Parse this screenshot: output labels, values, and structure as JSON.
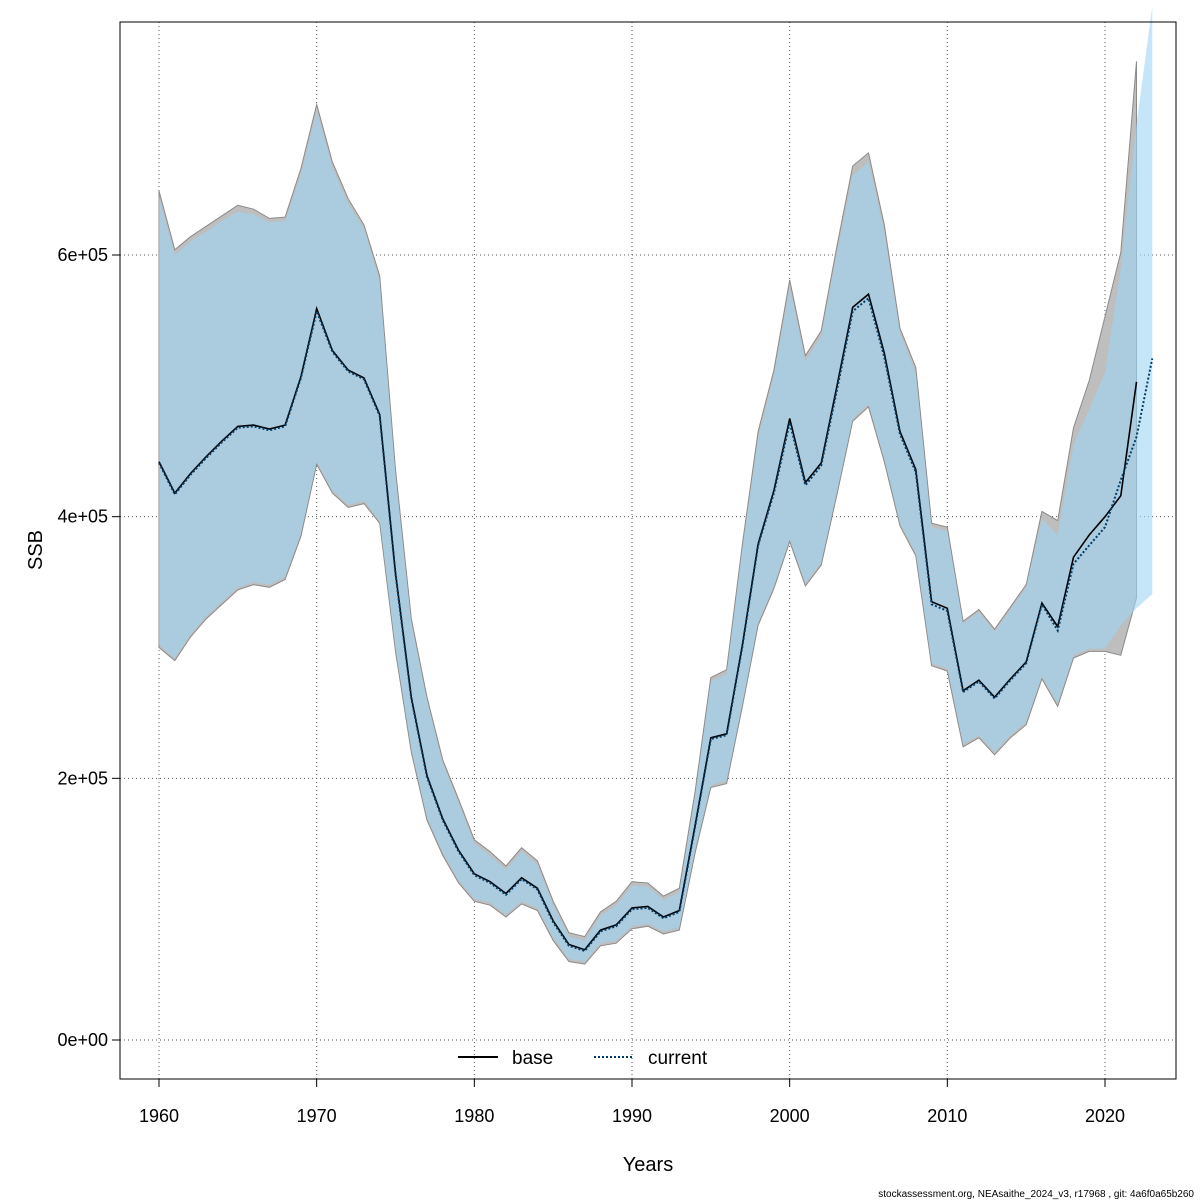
{
  "chart_data": {
    "type": "line",
    "title": "",
    "xlabel": "Years",
    "ylabel": "SSB",
    "xlim": [
      1957.5,
      2024.5
    ],
    "ylim": [
      -29000,
      780000
    ],
    "x_ticks": [
      1960,
      1970,
      1980,
      1990,
      2000,
      2010,
      2020
    ],
    "x_tick_labels": [
      "1960",
      "1970",
      "1980",
      "1990",
      "2000",
      "2010",
      "2020"
    ],
    "y_ticks": [
      0,
      200000,
      400000,
      600000
    ],
    "y_tick_labels": [
      "0e+00",
      "2e+05",
      "4e+05",
      "6e+05"
    ],
    "grid": true,
    "legend_position": "bottom",
    "series": [
      {
        "name": "base",
        "line_style": "solid",
        "color": "#000000",
        "band_color": "#bebebe",
        "x": [
          1960,
          1961,
          1962,
          1963,
          1964,
          1965,
          1966,
          1967,
          1968,
          1969,
          1970,
          1971,
          1972,
          1973,
          1974,
          1975,
          1976,
          1977,
          1978,
          1979,
          1980,
          1981,
          1982,
          1983,
          1984,
          1985,
          1986,
          1987,
          1988,
          1989,
          1990,
          1991,
          1992,
          1993,
          1994,
          1995,
          1996,
          1997,
          1998,
          1999,
          2000,
          2001,
          2002,
          2003,
          2004,
          2005,
          2006,
          2007,
          2008,
          2009,
          2010,
          2011,
          2012,
          2013,
          2014,
          2015,
          2016,
          2017,
          2018,
          2019,
          2020,
          2021,
          2022
        ],
        "values": [
          442000,
          418000,
          433000,
          446000,
          458000,
          469000,
          470000,
          467000,
          470000,
          507000,
          559000,
          527000,
          512000,
          506000,
          478000,
          357000,
          262000,
          202000,
          169000,
          145000,
          127000,
          121000,
          112000,
          124000,
          116000,
          91000,
          73000,
          69000,
          84000,
          88000,
          101000,
          102000,
          94000,
          99000,
          164000,
          231000,
          234000,
          302000,
          379000,
          420000,
          475000,
          426000,
          441000,
          500000,
          560000,
          570000,
          525000,
          465000,
          436000,
          335000,
          330000,
          267000,
          275000,
          262000,
          276000,
          289000,
          334000,
          316000,
          369000,
          386000,
          400000,
          416000,
          503000
        ],
        "low": [
          300000,
          290000,
          308000,
          322000,
          333000,
          344000,
          348000,
          346000,
          352000,
          385000,
          440000,
          418000,
          407000,
          410000,
          395000,
          297000,
          220000,
          168000,
          141000,
          120000,
          106000,
          103000,
          94000,
          104000,
          99000,
          76000,
          60000,
          58000,
          72000,
          74000,
          85000,
          87000,
          81000,
          84000,
          143000,
          193000,
          196000,
          255000,
          317000,
          345000,
          381000,
          347000,
          363000,
          417000,
          473000,
          484000,
          442000,
          393000,
          370000,
          286000,
          282000,
          224000,
          231000,
          218000,
          231000,
          241000,
          276000,
          255000,
          292000,
          297000,
          297000,
          294000,
          338000
        ],
        "high": [
          649000,
          604000,
          614000,
          622000,
          630000,
          638000,
          635000,
          628000,
          629000,
          666000,
          715000,
          671000,
          643000,
          623000,
          584000,
          436000,
          322000,
          262000,
          214000,
          184000,
          153000,
          144000,
          133000,
          147000,
          137000,
          106000,
          82000,
          79000,
          98000,
          106000,
          121000,
          120000,
          110000,
          116000,
          190000,
          277000,
          283000,
          379000,
          465000,
          512000,
          581000,
          523000,
          542000,
          607000,
          668000,
          678000,
          623000,
          544000,
          514000,
          395000,
          392000,
          320000,
          329000,
          314000,
          331000,
          348000,
          404000,
          397000,
          468000,
          504000,
          553000,
          602000,
          748000
        ]
      },
      {
        "name": "current",
        "line_style": "dotted",
        "color": "#003d66",
        "band_color": "#9fd4f5",
        "x": [
          1960,
          1961,
          1962,
          1963,
          1964,
          1965,
          1966,
          1967,
          1968,
          1969,
          1970,
          1971,
          1972,
          1973,
          1974,
          1975,
          1976,
          1977,
          1978,
          1979,
          1980,
          1981,
          1982,
          1983,
          1984,
          1985,
          1986,
          1987,
          1988,
          1989,
          1990,
          1991,
          1992,
          1993,
          1994,
          1995,
          1996,
          1997,
          1998,
          1999,
          2000,
          2001,
          2002,
          2003,
          2004,
          2005,
          2006,
          2007,
          2008,
          2009,
          2010,
          2011,
          2012,
          2013,
          2014,
          2015,
          2016,
          2017,
          2018,
          2019,
          2020,
          2021,
          2022,
          2023
        ],
        "values": [
          441000,
          417000,
          432000,
          445000,
          457000,
          468000,
          469000,
          466000,
          469000,
          506000,
          557000,
          526000,
          511000,
          505000,
          477000,
          356000,
          261000,
          201000,
          168000,
          144000,
          126000,
          120000,
          111000,
          123000,
          115000,
          90000,
          72000,
          68000,
          83000,
          87000,
          100000,
          101000,
          93000,
          98000,
          163000,
          230000,
          233000,
          301000,
          378000,
          418000,
          472000,
          424000,
          439000,
          497000,
          557000,
          567000,
          522000,
          463000,
          434000,
          333000,
          328000,
          266000,
          274000,
          261000,
          275000,
          288000,
          333000,
          313000,
          364000,
          378000,
          392000,
          428000,
          461000,
          521000
        ],
        "low": [
          302000,
          292000,
          310000,
          324000,
          335000,
          346000,
          350000,
          348000,
          354000,
          387000,
          442000,
          420000,
          409000,
          412000,
          397000,
          299000,
          222000,
          170000,
          143000,
          122000,
          108000,
          105000,
          96000,
          106000,
          101000,
          78000,
          62000,
          60000,
          74000,
          76000,
          87000,
          89000,
          83000,
          86000,
          145000,
          195000,
          198000,
          257000,
          319000,
          347000,
          383000,
          349000,
          365000,
          419000,
          475000,
          486000,
          444000,
          395000,
          372000,
          288000,
          284000,
          226000,
          233000,
          220000,
          233000,
          243000,
          278000,
          257000,
          294000,
          299000,
          299000,
          317000,
          330000,
          341000
        ],
        "high": [
          644000,
          600000,
          610000,
          618000,
          626000,
          633000,
          631000,
          625000,
          626000,
          662000,
          710000,
          667000,
          639000,
          620000,
          580000,
          432000,
          319000,
          259000,
          211000,
          181000,
          150000,
          141000,
          130000,
          144000,
          134000,
          103000,
          79000,
          76000,
          95000,
          103000,
          118000,
          117000,
          107000,
          113000,
          187000,
          274000,
          280000,
          376000,
          460000,
          508000,
          575000,
          519000,
          538000,
          602000,
          661000,
          671000,
          618000,
          540000,
          510000,
          392000,
          389000,
          318000,
          327000,
          312000,
          329000,
          346000,
          398000,
          386000,
          455000,
          482000,
          510000,
          590000,
          700000,
          790000
        ]
      }
    ],
    "legend": [
      {
        "label": "base",
        "style": "solid",
        "color": "#000000"
      },
      {
        "label": "current",
        "style": "dotted",
        "color": "#003d66"
      }
    ]
  },
  "footer": "stockassessment.org, NEAsaithe_2024_v3, r17968 , git: 4a6f0a65b260",
  "colors": {
    "band_overlap": "#a4c4d6",
    "base_band": "#bebebe",
    "current_band": "#9fd4f5",
    "band_edge": "#8a8a8a",
    "grid": "#5a5a5a"
  }
}
